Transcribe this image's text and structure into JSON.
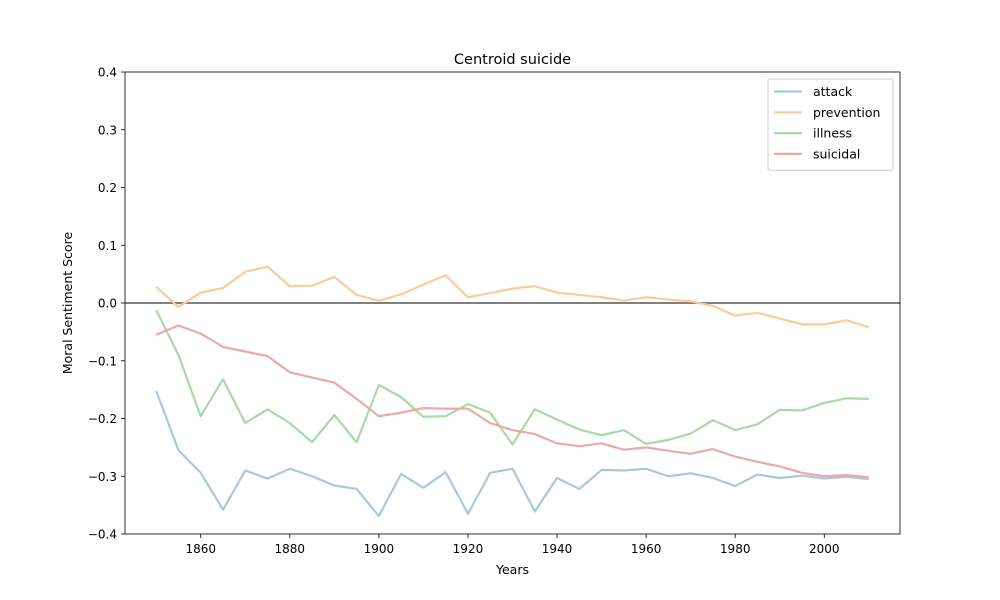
{
  "chart_data": {
    "type": "line",
    "title": "Centroid suicide",
    "xlabel": "Years",
    "ylabel": "Moral Sentiment Score",
    "xlim": [
      1843,
      2017
    ],
    "ylim": [
      -0.4,
      0.4
    ],
    "xticks": [
      1860,
      1880,
      1900,
      1920,
      1940,
      1960,
      1980,
      2000
    ],
    "yticks": [
      -0.4,
      -0.3,
      -0.2,
      -0.1,
      0.0,
      0.1,
      0.2,
      0.3,
      0.4
    ],
    "ytick_labels": [
      "−0.4",
      "−0.3",
      "−0.2",
      "−0.1",
      "0.0",
      "0.1",
      "0.2",
      "0.3",
      "0.4"
    ],
    "hline": {
      "y": 0.0,
      "color": "#808080"
    },
    "legend_position": "upper right",
    "grid": false,
    "x": [
      1850,
      1855,
      1860,
      1865,
      1870,
      1875,
      1880,
      1885,
      1890,
      1895,
      1900,
      1905,
      1910,
      1915,
      1920,
      1925,
      1930,
      1935,
      1940,
      1945,
      1950,
      1955,
      1960,
      1965,
      1970,
      1975,
      1980,
      1985,
      1990,
      1995,
      2000,
      2005,
      2010
    ],
    "series": [
      {
        "name": "attack",
        "color": "#a6c8e1",
        "values": [
          -0.152,
          -0.255,
          -0.294,
          -0.358,
          -0.29,
          -0.304,
          -0.287,
          -0.3,
          -0.316,
          -0.322,
          -0.369,
          -0.296,
          -0.32,
          -0.293,
          -0.365,
          -0.294,
          -0.287,
          -0.361,
          -0.303,
          -0.322,
          -0.289,
          -0.29,
          -0.287,
          -0.3,
          -0.295,
          -0.303,
          -0.317,
          -0.297,
          -0.303,
          -0.299,
          -0.304,
          -0.301,
          -0.305
        ]
      },
      {
        "name": "prevention",
        "color": "#fec99e",
        "values": [
          0.028,
          -0.007,
          0.018,
          0.026,
          0.054,
          0.063,
          0.029,
          0.03,
          0.045,
          0.014,
          0.004,
          0.015,
          0.032,
          0.048,
          0.01,
          0.017,
          0.025,
          0.029,
          0.018,
          0.014,
          0.01,
          0.004,
          0.01,
          0.006,
          0.003,
          -0.005,
          -0.022,
          -0.017,
          -0.027,
          -0.037,
          -0.037,
          -0.03,
          -0.042
        ]
      },
      {
        "name": "illness",
        "color": "#a9d9a8",
        "values": [
          -0.012,
          -0.09,
          -0.196,
          -0.132,
          -0.208,
          -0.184,
          -0.208,
          -0.241,
          -0.194,
          -0.241,
          -0.142,
          -0.163,
          -0.197,
          -0.196,
          -0.175,
          -0.19,
          -0.245,
          -0.184,
          -0.202,
          -0.219,
          -0.229,
          -0.22,
          -0.244,
          -0.237,
          -0.226,
          -0.203,
          -0.22,
          -0.21,
          -0.185,
          -0.186,
          -0.173,
          -0.165,
          -0.166
        ]
      },
      {
        "name": "suicidal",
        "color": "#eda8a8",
        "values": [
          -0.055,
          -0.039,
          -0.053,
          -0.076,
          -0.084,
          -0.092,
          -0.12,
          -0.129,
          -0.138,
          -0.166,
          -0.196,
          -0.19,
          -0.182,
          -0.183,
          -0.183,
          -0.208,
          -0.22,
          -0.227,
          -0.243,
          -0.248,
          -0.243,
          -0.254,
          -0.25,
          -0.256,
          -0.261,
          -0.253,
          -0.266,
          -0.275,
          -0.283,
          -0.294,
          -0.3,
          -0.298,
          -0.302
        ]
      }
    ]
  }
}
